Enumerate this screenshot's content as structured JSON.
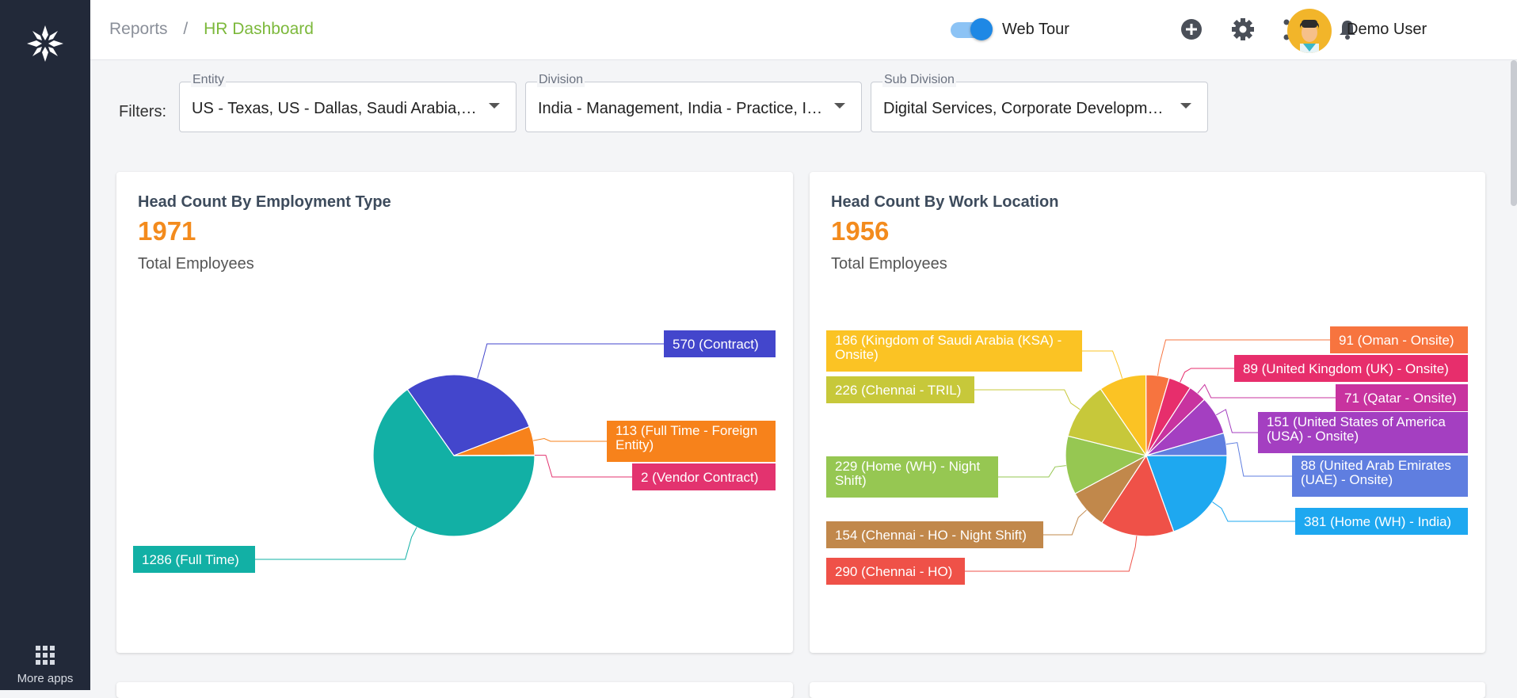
{
  "nav": {
    "more_apps_label": "More apps"
  },
  "header": {
    "breadcrumb": {
      "parent": "Reports",
      "separator": "/",
      "current": "HR Dashboard"
    },
    "web_tour": {
      "label": "Web Tour",
      "enabled": true
    },
    "icons": [
      "add-circle-icon",
      "gear-icon",
      "network-icon",
      "bell-icon"
    ],
    "user": {
      "name": "Demo User"
    }
  },
  "filters": {
    "label": "Filters:",
    "entity": {
      "label": "Entity",
      "value": "US - Texas, US - Dallas, Saudi Arabia, US - New York"
    },
    "division": {
      "label": "Division",
      "value": "India - Management, India - Practice, India - Support"
    },
    "sub_division": {
      "label": "Sub Division",
      "value": "Digital Services, Corporate Development, Finance"
    }
  },
  "cards": {
    "employment": {
      "title": "Head Count By Employment Type",
      "total": "1971",
      "subtitle": "Total Employees"
    },
    "location": {
      "title": "Head Count By Work Location",
      "total": "1956",
      "subtitle": "Total Employees"
    }
  },
  "chart_data": [
    {
      "type": "pie",
      "title": "Head Count By Employment Type",
      "slices": [
        {
          "label": "1286 (Full Time)",
          "value": 1286,
          "color": "#12b0a5",
          "lines": [
            "1286 (Full Time)"
          ]
        },
        {
          "label": "570 (Contract)",
          "value": 570,
          "color": "#4346cc",
          "lines": [
            "570 (Contract)"
          ]
        },
        {
          "label": "113 (Full Time - Foreign Entity)",
          "value": 113,
          "color": "#f7821b",
          "lines": [
            "113 (Full Time - Foreign",
            "Entity)"
          ]
        },
        {
          "label": "2 (Vendor Contract)",
          "value": 2,
          "color": "#e3336f",
          "lines": [
            "2 (Vendor Contract)"
          ]
        }
      ]
    },
    {
      "type": "pie",
      "title": "Head Count By Work Location",
      "slices": [
        {
          "label": "381 (Home (WH) - India)",
          "value": 381,
          "color": "#1ea8f0",
          "lines": [
            "381 (Home (WH) - India)"
          ]
        },
        {
          "label": "290 (Chennai - HO)",
          "value": 290,
          "color": "#ef5148",
          "lines": [
            "290 (Chennai - HO)"
          ]
        },
        {
          "label": "154 (Chennai - HO - Night Shift)",
          "value": 154,
          "color": "#c1884b",
          "lines": [
            "154 (Chennai - HO - Night Shift)"
          ]
        },
        {
          "label": "229 (Home (WH) - Night Shift)",
          "value": 229,
          "color": "#96c752",
          "lines": [
            "229 (Home (WH) - Night",
            "Shift)"
          ]
        },
        {
          "label": "226 (Chennai - TRIL)",
          "value": 226,
          "color": "#c7c83a",
          "lines": [
            "226 (Chennai - TRIL)"
          ]
        },
        {
          "label": "186 (Kingdom of Saudi Arabia (KSA) - Onsite)",
          "value": 186,
          "color": "#fbc324",
          "lines": [
            "186 (Kingdom of Saudi Arabia (KSA) -",
            "Onsite)"
          ]
        },
        {
          "label": "91 (Oman - Onsite)",
          "value": 91,
          "color": "#f7743f",
          "lines": [
            "91 (Oman - Onsite)"
          ]
        },
        {
          "label": "89 (United Kingdom (UK) - Onsite)",
          "value": 89,
          "color": "#e72e6c",
          "lines": [
            "89 (United Kingdom (UK) - Onsite)"
          ]
        },
        {
          "label": "71 (Qatar - Onsite)",
          "value": 71,
          "color": "#c8339f",
          "lines": [
            "71 (Qatar - Onsite)"
          ]
        },
        {
          "label": "151 (United States of America (USA) - Onsite)",
          "value": 151,
          "color": "#a43fc1",
          "lines": [
            "151 (United States of America",
            "(USA) - Onsite)"
          ]
        },
        {
          "label": "88 (United Arab Emirates (UAE) - Onsite)",
          "value": 88,
          "color": "#5f7ee0",
          "lines": [
            "88 (United Arab Emirates",
            "(UAE) - Onsite)"
          ]
        }
      ]
    }
  ]
}
